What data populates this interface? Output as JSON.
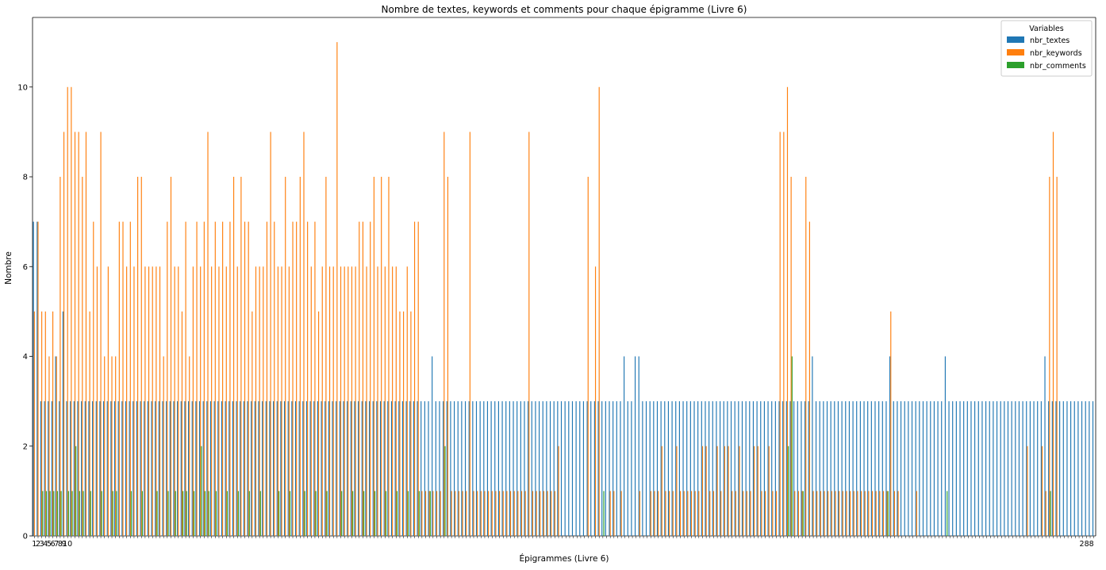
{
  "chart_data": {
    "type": "bar",
    "title": "Nombre de textes, keywords et comments pour chaque épigramme (Livre 6)",
    "xlabel": "Épigrammes (Livre 6)",
    "ylabel": "Nombre",
    "ylim": [
      0,
      11.55
    ],
    "yticks": [
      0,
      2,
      4,
      6,
      8,
      10
    ],
    "grid": false,
    "legend": {
      "title": "Variables",
      "placement": "top-right"
    },
    "x_range": [
      1,
      288
    ],
    "x_tick_labels_visible": [
      "1",
      "2",
      "3",
      "4",
      "5",
      "6",
      "7",
      "8",
      "9",
      "10",
      "288"
    ],
    "colors": {
      "nbr_textes": "#1f77b4",
      "nbr_keywords": "#ff7f0e",
      "nbr_comments": "#2ca02c"
    },
    "series": [
      {
        "name": "nbr_textes",
        "key": "nbr_textes",
        "base_value": 3,
        "overrides": [
          [
            1,
            7
          ],
          [
            2,
            7
          ],
          [
            7,
            4
          ],
          [
            9,
            5
          ],
          [
            109,
            4
          ],
          [
            161,
            4
          ],
          [
            164,
            4
          ],
          [
            165,
            4
          ],
          [
            212,
            4
          ],
          [
            233,
            4
          ],
          [
            248,
            4
          ],
          [
            275,
            4
          ]
        ]
      },
      {
        "name": "nbr_keywords",
        "key": "nbr_keywords",
        "base_value": 0,
        "values_1_to_80": [
          5,
          7,
          5,
          5,
          4,
          5,
          4,
          8,
          9,
          10,
          10,
          9,
          9,
          8,
          9,
          5,
          7,
          6,
          9,
          4,
          6,
          4,
          4,
          7,
          7,
          6,
          7,
          6,
          8,
          8,
          6,
          6,
          6,
          6,
          6,
          4,
          7,
          8,
          6,
          6,
          5,
          7,
          4,
          6,
          7,
          6,
          7,
          9,
          6,
          7,
          6,
          7,
          6,
          7,
          8,
          6,
          8,
          7,
          7,
          5,
          6,
          6,
          6,
          7,
          9,
          7,
          6,
          6,
          8,
          6,
          7,
          7,
          8,
          9,
          7,
          6,
          7,
          5,
          6,
          8
        ],
        "values_81_to_100": [
          6,
          6,
          11,
          6,
          6,
          6,
          6,
          6,
          7,
          7,
          6,
          7,
          8,
          6,
          8,
          6,
          8,
          6,
          6,
          5
        ],
        "values_101_to_110": [
          5,
          6,
          5,
          7,
          7,
          1,
          1,
          1,
          1,
          1
        ],
        "overrides": [
          [
            111,
            1
          ],
          [
            112,
            9
          ],
          [
            113,
            8
          ],
          [
            114,
            1
          ],
          [
            115,
            1
          ],
          [
            116,
            1
          ],
          [
            117,
            1
          ],
          [
            118,
            1
          ],
          [
            119,
            9
          ],
          [
            120,
            1
          ],
          [
            121,
            1
          ],
          [
            122,
            1
          ],
          [
            123,
            1
          ],
          [
            124,
            1
          ],
          [
            125,
            1
          ],
          [
            126,
            1
          ],
          [
            127,
            1
          ],
          [
            128,
            1
          ],
          [
            129,
            1
          ],
          [
            130,
            1
          ],
          [
            131,
            1
          ],
          [
            132,
            1
          ],
          [
            133,
            1
          ],
          [
            134,
            1
          ],
          [
            135,
            9
          ],
          [
            136,
            1
          ],
          [
            137,
            1
          ],
          [
            138,
            1
          ],
          [
            139,
            1
          ],
          [
            140,
            1
          ],
          [
            141,
            1
          ],
          [
            142,
            1
          ],
          [
            143,
            2
          ],
          [
            151,
            8
          ],
          [
            153,
            6
          ],
          [
            154,
            10
          ],
          [
            157,
            1
          ],
          [
            158,
            1
          ],
          [
            160,
            1
          ],
          [
            165,
            1
          ],
          [
            168,
            1
          ],
          [
            169,
            1
          ],
          [
            170,
            1
          ],
          [
            171,
            2
          ],
          [
            172,
            1
          ],
          [
            173,
            1
          ],
          [
            174,
            1
          ],
          [
            175,
            2
          ],
          [
            176,
            1
          ],
          [
            177,
            1
          ],
          [
            178,
            1
          ],
          [
            179,
            1
          ],
          [
            180,
            1
          ],
          [
            181,
            1
          ],
          [
            182,
            2
          ],
          [
            183,
            2
          ],
          [
            184,
            1
          ],
          [
            185,
            1
          ],
          [
            186,
            2
          ],
          [
            187,
            1
          ],
          [
            188,
            2
          ],
          [
            189,
            2
          ],
          [
            190,
            1
          ],
          [
            191,
            1
          ],
          [
            192,
            2
          ],
          [
            193,
            1
          ],
          [
            194,
            1
          ],
          [
            195,
            1
          ],
          [
            196,
            2
          ],
          [
            197,
            2
          ],
          [
            198,
            1
          ],
          [
            199,
            1
          ],
          [
            200,
            2
          ],
          [
            201,
            1
          ],
          [
            202,
            1
          ],
          [
            203,
            9
          ],
          [
            204,
            9
          ],
          [
            205,
            10
          ],
          [
            206,
            8
          ],
          [
            207,
            1
          ],
          [
            208,
            1
          ],
          [
            209,
            1
          ],
          [
            210,
            8
          ],
          [
            211,
            7
          ],
          [
            212,
            1
          ],
          [
            213,
            1
          ],
          [
            214,
            1
          ],
          [
            215,
            1
          ],
          [
            216,
            1
          ],
          [
            217,
            1
          ],
          [
            218,
            1
          ],
          [
            219,
            1
          ],
          [
            220,
            1
          ],
          [
            221,
            1
          ],
          [
            222,
            1
          ],
          [
            223,
            1
          ],
          [
            224,
            1
          ],
          [
            225,
            1
          ],
          [
            226,
            1
          ],
          [
            227,
            1
          ],
          [
            228,
            1
          ],
          [
            229,
            1
          ],
          [
            230,
            1
          ],
          [
            231,
            1
          ],
          [
            232,
            1
          ],
          [
            233,
            5
          ],
          [
            234,
            1
          ],
          [
            235,
            1
          ],
          [
            240,
            1
          ],
          [
            270,
            2
          ],
          [
            274,
            2
          ],
          [
            275,
            1
          ],
          [
            276,
            8
          ],
          [
            277,
            9
          ],
          [
            278,
            8
          ]
        ]
      },
      {
        "name": "nbr_comments",
        "key": "nbr_comments",
        "base_value": 0,
        "overrides": [
          [
            3,
            1
          ],
          [
            4,
            1
          ],
          [
            5,
            1
          ],
          [
            6,
            1
          ],
          [
            7,
            1
          ],
          [
            8,
            1
          ],
          [
            10,
            1
          ],
          [
            11,
            1
          ],
          [
            12,
            2
          ],
          [
            13,
            1
          ],
          [
            14,
            1
          ],
          [
            16,
            1
          ],
          [
            19,
            1
          ],
          [
            22,
            1
          ],
          [
            23,
            1
          ],
          [
            27,
            1
          ],
          [
            30,
            1
          ],
          [
            34,
            1
          ],
          [
            37,
            1
          ],
          [
            39,
            1
          ],
          [
            41,
            1
          ],
          [
            42,
            1
          ],
          [
            44,
            1
          ],
          [
            46,
            2
          ],
          [
            47,
            1
          ],
          [
            48,
            1
          ],
          [
            50,
            1
          ],
          [
            53,
            1
          ],
          [
            56,
            1
          ],
          [
            59,
            1
          ],
          [
            62,
            1
          ],
          [
            67,
            1
          ],
          [
            70,
            1
          ],
          [
            74,
            1
          ],
          [
            77,
            1
          ],
          [
            80,
            1
          ],
          [
            84,
            1
          ],
          [
            87,
            1
          ],
          [
            90,
            1
          ],
          [
            93,
            1
          ],
          [
            96,
            1
          ],
          [
            99,
            1
          ],
          [
            102,
            1
          ],
          [
            105,
            1
          ],
          [
            108,
            1
          ],
          [
            112,
            2
          ],
          [
            155,
            1
          ],
          [
            205,
            2
          ],
          [
            206,
            4
          ],
          [
            209,
            1
          ],
          [
            232,
            1
          ],
          [
            248,
            1
          ],
          [
            276,
            1
          ]
        ]
      }
    ]
  }
}
